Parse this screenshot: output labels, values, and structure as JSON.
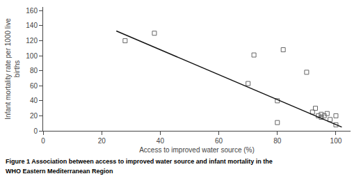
{
  "chart_data": {
    "type": "scatter",
    "xlabel": "Access to improved water source (%)",
    "ylabel": "Infant mortality rate per 1000 live\nbirths",
    "annotations": [
      "Figure 1 Association between access to improved water source and infant mortality in the",
      "WHO Eastern Mediterranean Region"
    ],
    "xlim": [
      0,
      105
    ],
    "ylim": [
      0,
      165
    ],
    "xticks": [
      0,
      20,
      40,
      60,
      80,
      100
    ],
    "yticks": [
      0,
      20,
      40,
      60,
      80,
      100,
      120,
      140,
      160
    ],
    "grid": false,
    "series": [
      {
        "type": "scatter",
        "marker": "square-open",
        "color": "#666666",
        "x": [
          28,
          38,
          70,
          72,
          80,
          80,
          82,
          90,
          92,
          93,
          94,
          95,
          95,
          96,
          97,
          98,
          100,
          100
        ],
        "values": [
          120,
          130,
          63,
          101,
          40,
          11,
          108,
          78,
          25,
          30,
          20,
          22,
          18,
          20,
          23,
          15,
          20,
          8
        ]
      },
      {
        "type": "line",
        "color": "#111111",
        "x": [
          25,
          102
        ],
        "values": [
          133,
          5
        ]
      }
    ]
  }
}
